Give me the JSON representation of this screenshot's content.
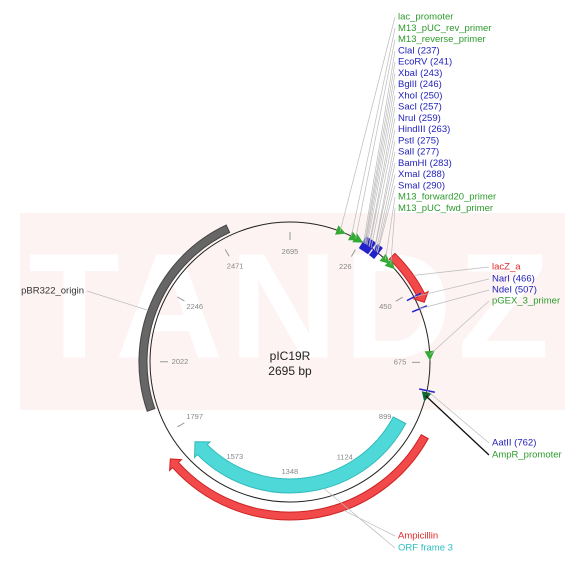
{
  "map": {
    "watermark": "TANDZ",
    "name": "pIC19R",
    "size": "2695 bp",
    "ticks": [
      226,
      450,
      675,
      899,
      1124,
      1348,
      1573,
      1797,
      2022,
      2246,
      2471,
      2695
    ],
    "labels": [
      "lac_promoter",
      "M13_pUC_rev_primer",
      "M13_reverse_primer",
      "ClaI (237)",
      "EcoRV (241)",
      "XbaI (243)",
      "BglII (246)",
      "XhoI (250)",
      "SacI (257)",
      "NruI (259)",
      "HindIII (263)",
      "PstI (275)",
      "SalI (277)",
      "BamHI (283)",
      "XmaI (288)",
      "SmaI (290)",
      "M13_forward20_primer",
      "M13_pUC_fwd_primer",
      "lacZ_a",
      "NarI (466)",
      "NdeI (507)",
      "pGEX_3_primer",
      "AatII (762)",
      "AmpR_promoter",
      "Ampicillin",
      "ORF frame 3",
      "pBR322_origin"
    ]
  }
}
